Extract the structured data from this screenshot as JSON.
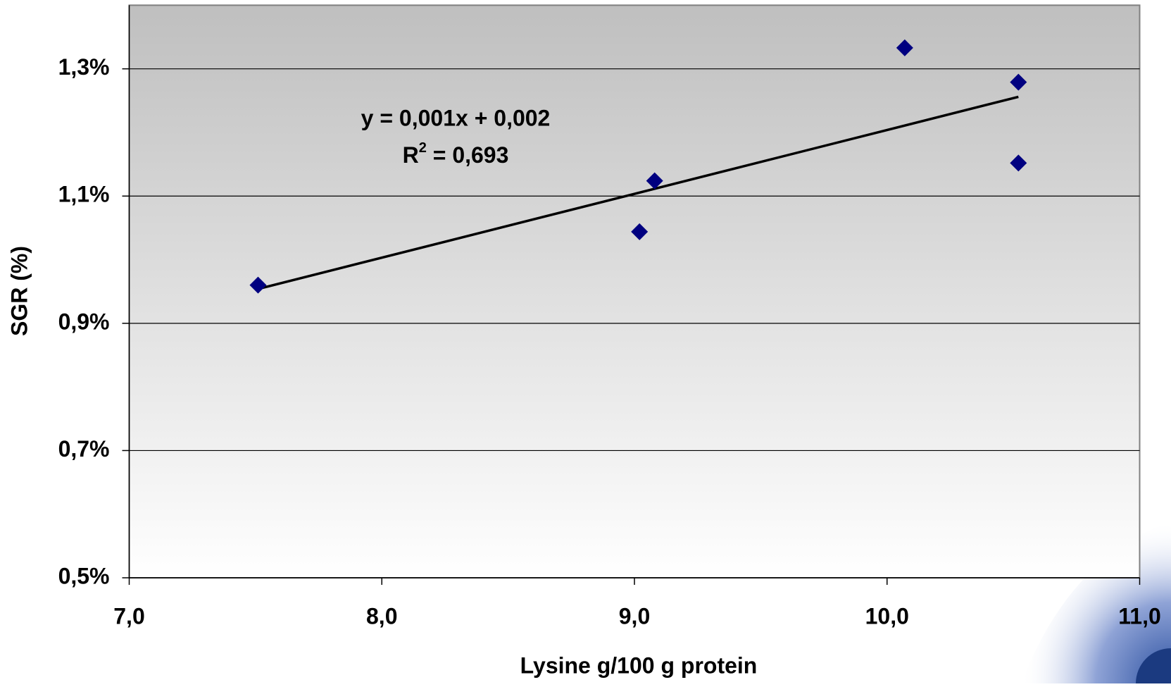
{
  "chart_data": {
    "type": "scatter",
    "x_label": "Lysine g/100 g protein",
    "y_label": "SGR (%)",
    "xlim": [
      7,
      11
    ],
    "ylim": [
      0.5,
      1.4
    ],
    "xticks": [
      {
        "value": 7,
        "label": "7,0"
      },
      {
        "value": 8,
        "label": "8,0"
      },
      {
        "value": 9,
        "label": "9,0"
      },
      {
        "value": 10,
        "label": "10,0"
      },
      {
        "value": 11,
        "label": "11,0"
      }
    ],
    "yticks": [
      {
        "value": 0.5,
        "label": "0,5%"
      },
      {
        "value": 0.7,
        "label": "0,7%"
      },
      {
        "value": 0.9,
        "label": "0,9%"
      },
      {
        "value": 1.1,
        "label": "1,1%"
      },
      {
        "value": 1.3,
        "label": "1,3%"
      }
    ],
    "grid": true,
    "series": [
      {
        "color": "#000080",
        "x": [
          7.51,
          9.02,
          9.08,
          10.07,
          10.52,
          10.52
        ],
        "values": [
          0.96,
          1.044,
          1.124,
          1.333,
          1.279,
          1.152
        ]
      }
    ],
    "trendline": {
      "color": "#000000",
      "x": [
        7.51,
        10.52
      ],
      "values": [
        0.954,
        1.256
      ]
    },
    "equation": "y = 0,001x + 0,002",
    "r_squared": {
      "base": "R",
      "sup": "2",
      "rest": " = 0,693"
    }
  }
}
